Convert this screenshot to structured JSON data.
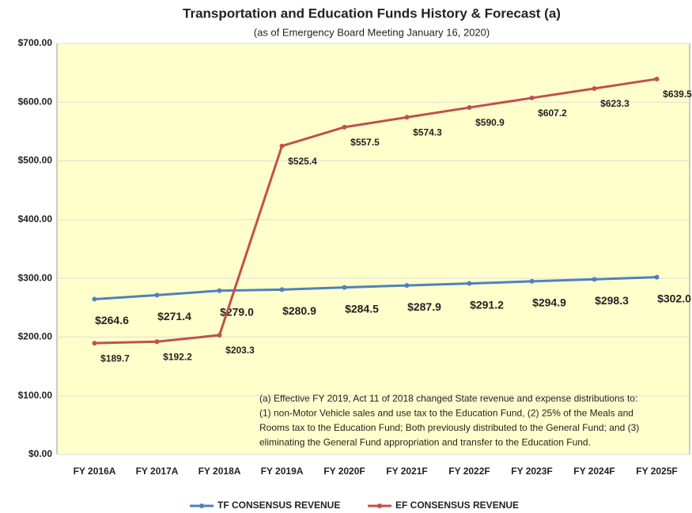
{
  "chart_data": {
    "type": "line",
    "title": "Transportation and Education Funds History & Forecast (a)",
    "subtitle": "(as of Emergency Board Meeting January 16, 2020)",
    "categories": [
      "FY 2016A",
      "FY 2017A",
      "FY 2018A",
      "FY 2019A",
      "FY 2020F",
      "FY 2021F",
      "FY 2022F",
      "FY 2023F",
      "FY 2024F",
      "FY 2025F"
    ],
    "series": [
      {
        "name": "TF CONSENSUS REVENUE",
        "color": "#4f81bd",
        "values": [
          264.6,
          271.4,
          279.0,
          280.9,
          284.5,
          287.9,
          291.2,
          294.9,
          298.3,
          302.0
        ],
        "value_labels": [
          "$264.6",
          "$271.4",
          "$279.0",
          "$280.9",
          "$284.5",
          "$287.9",
          "$291.2",
          "$294.9",
          "$298.3",
          "$302.0"
        ]
      },
      {
        "name": "EF CONSENSUS REVENUE",
        "color": "#c0504d",
        "values": [
          189.7,
          192.2,
          203.3,
          525.4,
          557.5,
          574.3,
          590.9,
          607.2,
          623.3,
          639.5
        ],
        "value_labels": [
          "$189.7",
          "$192.2",
          "$203.3",
          "$525.4",
          "$557.5",
          "$574.3",
          "$590.9",
          "$607.2",
          "$623.3",
          "$639.5"
        ]
      }
    ],
    "ylim": [
      0,
      700
    ],
    "yticks": [
      {
        "value": 0,
        "label": "$0.00"
      },
      {
        "value": 100,
        "label": "$100.00"
      },
      {
        "value": 200,
        "label": "$200.00"
      },
      {
        "value": 300,
        "label": "$300.00"
      },
      {
        "value": 400,
        "label": "$400.00"
      },
      {
        "value": 500,
        "label": "$500.00"
      },
      {
        "value": 600,
        "label": "$600.00"
      },
      {
        "value": 700,
        "label": "$700.00"
      }
    ],
    "grid": true,
    "legend": "bottom",
    "note_lines": [
      "(a) Effective FY 2019, Act 11 of 2018 changed State revenue and expense distributions to:",
      "(1) non-Motor Vehicle sales and use tax to the Education Fund, (2) 25% of the Meals and",
      "Rooms tax to the Education Fund; Both previously distributed to the General Fund; and (3)",
      "eliminating the General Fund appropriation and transfer to the Education Fund."
    ]
  }
}
